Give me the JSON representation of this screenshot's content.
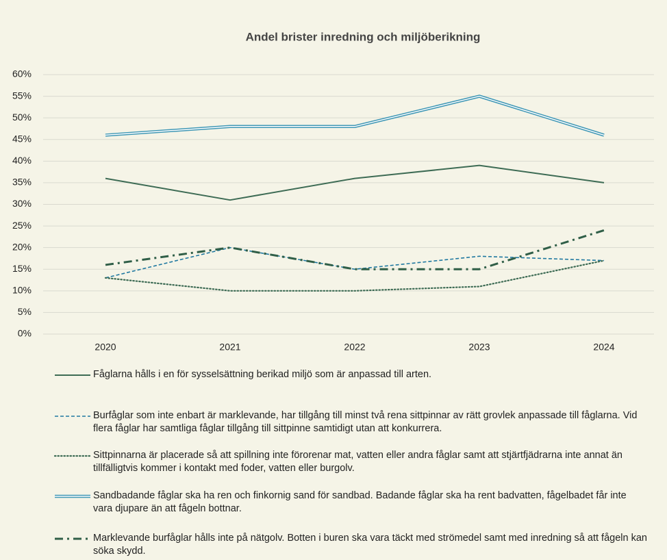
{
  "chart_data": {
    "type": "line",
    "title": "Andel brister inredning och miljöberikning",
    "categories": [
      "2020",
      "2021",
      "2022",
      "2023",
      "2024"
    ],
    "ylim": [
      0,
      60
    ],
    "yticks": [
      {
        "value": 0,
        "label": "0%"
      },
      {
        "value": 5,
        "label": "5%"
      },
      {
        "value": 10,
        "label": "10%"
      },
      {
        "value": 15,
        "label": "15%"
      },
      {
        "value": 20,
        "label": "20%"
      },
      {
        "value": 25,
        "label": "25%"
      },
      {
        "value": 30,
        "label": "30%"
      },
      {
        "value": 35,
        "label": "35%"
      },
      {
        "value": 40,
        "label": "40%"
      },
      {
        "value": 45,
        "label": "45%"
      },
      {
        "value": 50,
        "label": "50%"
      },
      {
        "value": 55,
        "label": "55%"
      },
      {
        "value": 60,
        "label": "60%"
      }
    ],
    "grid": true,
    "legend": "bottom",
    "series": [
      {
        "name": "Fåglarna hålls i en för sysselsättning berikad miljö som är anpassad till arten.",
        "color": "#3d6b54",
        "line_style": "solid",
        "values": [
          36,
          31,
          36,
          39,
          35
        ]
      },
      {
        "name": "Burfåglar som inte enbart är marklevande, har tillgång till minst två rena sittpinnar av rätt grovlek anpassade till fåglarna. Vid flera fåglar har samtliga fåglar tillgång till sittpinne samtidigt utan att konkurrera.",
        "color": "#1f78a0",
        "line_style": "dashed",
        "values": [
          13,
          20,
          15,
          18,
          17
        ]
      },
      {
        "name": "Sittpinnarna är placerade så att spillning inte förorenar mat, vatten eller andra fåglar samt att stjärtfjädrarna inte annat än tillfälligtvis kommer i kontakt med foder, vatten eller burgolv.",
        "color": "#3d6b54",
        "line_style": "dotted",
        "values": [
          13,
          10,
          10,
          11,
          17
        ]
      },
      {
        "name": "Sandbadande fåglar ska ha ren och finkornig sand för sandbad. Badande fåglar ska ha rent badvatten, fågelbadet får inte vara djupare än att fågeln bottnar.",
        "color": "#3f97b5",
        "line_style": "double",
        "values": [
          46,
          48,
          48,
          55,
          46
        ]
      },
      {
        "name": "Marklevande burfåglar hålls inte på nätgolv. Botten i buren ska vara täckt med strömedel samt med inredning så att fågeln kan söka skydd.",
        "color": "#2f5e47",
        "line_style": "dashdot",
        "values": [
          16,
          20,
          15,
          15,
          24
        ]
      }
    ]
  }
}
